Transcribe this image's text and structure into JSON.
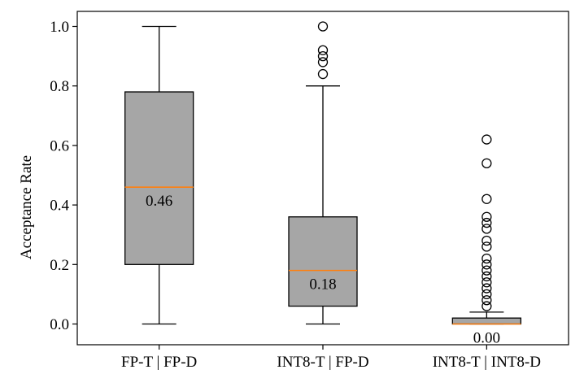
{
  "chart_data": {
    "type": "box",
    "ylabel": "Acceptance Rate",
    "ylim": [
      -0.07,
      1.05
    ],
    "yticks": [
      "0.0",
      "0.2",
      "0.4",
      "0.6",
      "0.8",
      "1.0"
    ],
    "yticks_values": [
      0.0,
      0.2,
      0.4,
      0.6,
      0.8,
      1.0
    ],
    "grid": false,
    "categories": [
      "FP-T | FP-D",
      "INT8-T | FP-D",
      "INT8-T | INT8-D"
    ],
    "boxes": [
      {
        "category": "FP-T | FP-D",
        "whisker_low": 0.0,
        "q1": 0.2,
        "median": 0.46,
        "q3": 0.78,
        "whisker_high": 1.0,
        "outliers": [],
        "median_label": "0.46"
      },
      {
        "category": "INT8-T | FP-D",
        "whisker_low": 0.0,
        "q1": 0.06,
        "median": 0.18,
        "q3": 0.36,
        "whisker_high": 0.8,
        "outliers": [
          0.84,
          0.88,
          0.9,
          0.92,
          1.0
        ],
        "median_label": "0.18"
      },
      {
        "category": "INT8-T | INT8-D",
        "whisker_low": 0.0,
        "q1": 0.0,
        "median": 0.0,
        "q3": 0.02,
        "whisker_high": 0.04,
        "outliers": [
          0.06,
          0.08,
          0.1,
          0.12,
          0.14,
          0.16,
          0.18,
          0.2,
          0.22,
          0.26,
          0.28,
          0.32,
          0.34,
          0.36,
          0.42,
          0.54,
          0.62
        ],
        "median_label": "0.00"
      }
    ],
    "colors": {
      "box_fill": "#a6a6a6",
      "median": "#ff7f0e",
      "line": "#000000"
    }
  }
}
